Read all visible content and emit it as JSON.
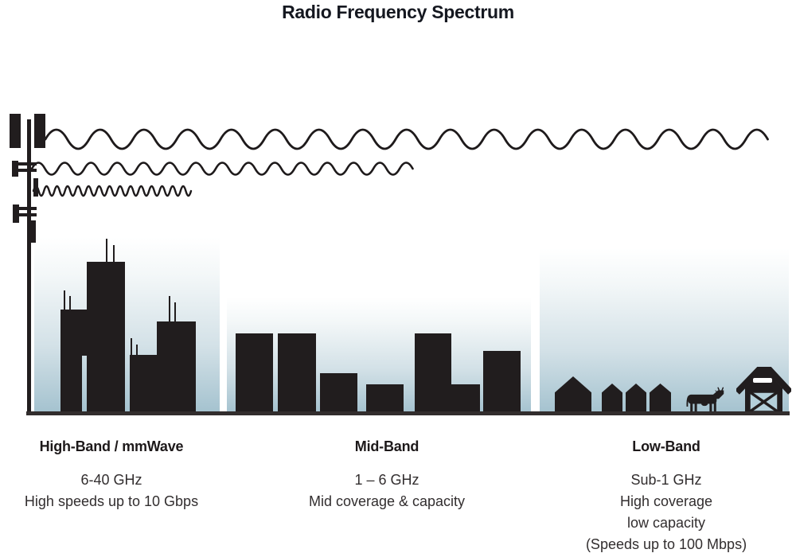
{
  "title": "Radio Frequency Spectrum",
  "bands": [
    {
      "heading": "High-Band / mmWave",
      "lines": [
        "6-40 GHz",
        "High speeds up to 10 Gbps"
      ]
    },
    {
      "heading": "Mid-Band",
      "lines": [
        "1 – 6 GHz",
        "Mid coverage & capacity"
      ]
    },
    {
      "heading": "Low-Band",
      "lines": [
        "Sub-1 GHz",
        "High coverage",
        "low capacity",
        "(Speeds up to 100 Mbps)"
      ]
    }
  ],
  "illustration": {
    "tower": "cell-tower-icon",
    "waves": [
      {
        "name": "long-wavelength-wave"
      },
      {
        "name": "medium-wavelength-wave"
      },
      {
        "name": "short-wavelength-wave"
      }
    ],
    "scenes": [
      {
        "band": "High-Band / mmWave",
        "depicts": "city skyscrapers with antennas"
      },
      {
        "band": "Mid-Band",
        "depicts": "mid-rise buildings"
      },
      {
        "band": "Low-Band",
        "depicts": "houses, cow and barn"
      }
    ]
  },
  "colors": {
    "ink": "#211d1e",
    "sky_bottom": "#a4c2cf",
    "barn_door": "#b3cfda",
    "heading_text": "#1d191a",
    "body_text": "#322e2f",
    "baseline": "#322d2d"
  }
}
